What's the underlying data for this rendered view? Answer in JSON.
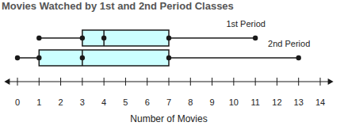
{
  "chart_data": {
    "type": "box",
    "title": "Movies Watched by 1st and 2nd Period Classes",
    "x_label": "Number of Movies",
    "orientation": "horizontal",
    "xlim": [
      -0.5,
      14.5
    ],
    "xticks": [
      0,
      1,
      2,
      3,
      4,
      5,
      6,
      7,
      8,
      9,
      10,
      11,
      12,
      13,
      14
    ],
    "color": "#ccffff",
    "series": [
      {
        "name": "1st Period",
        "values": [
          1,
          3,
          4,
          7,
          11
        ]
      },
      {
        "name": "2nd Period",
        "values": [
          0,
          1,
          3,
          7,
          13
        ]
      }
    ]
  }
}
